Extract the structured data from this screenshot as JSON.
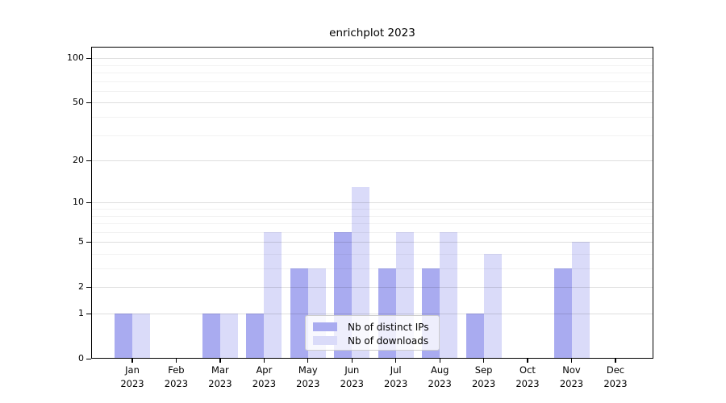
{
  "chart_data": {
    "type": "bar",
    "title": "enrichplot 2023",
    "categories": [
      "Jan",
      "Feb",
      "Mar",
      "Apr",
      "May",
      "Jun",
      "Jul",
      "Aug",
      "Sep",
      "Oct",
      "Nov",
      "Dec"
    ],
    "year_label": "2023",
    "series": [
      {
        "name": "Nb of distinct IPs",
        "color": "#a9abf0",
        "values": [
          1,
          0,
          1,
          1,
          3,
          6,
          3,
          3,
          1,
          0,
          3,
          0
        ]
      },
      {
        "name": "Nb of downloads",
        "color": "#dadbf9",
        "values": [
          1,
          0,
          1,
          6,
          3,
          13,
          6,
          6,
          4,
          0,
          5,
          0
        ]
      }
    ],
    "yscale": "log10(1+x)",
    "y_ticks": [
      0,
      1,
      2,
      5,
      10,
      20,
      50,
      100
    ],
    "y_minor_gridlines": [
      3,
      4,
      6,
      7,
      8,
      9,
      30,
      40,
      60,
      70,
      80,
      90
    ],
    "ylim": [
      0,
      120
    ],
    "xlabel": "",
    "ylabel": "",
    "grid": true,
    "legend_position": "lower-center"
  }
}
